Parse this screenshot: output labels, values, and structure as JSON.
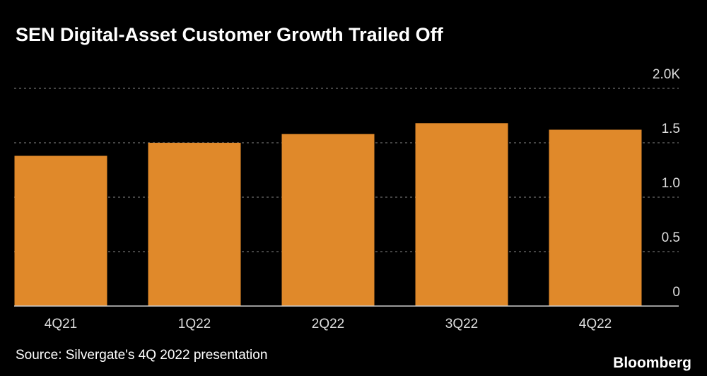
{
  "chart_data": {
    "type": "bar",
    "title": "SEN Digital-Asset Customer Growth Trailed Off",
    "categories": [
      "4Q21",
      "1Q22",
      "2Q22",
      "3Q22",
      "4Q22"
    ],
    "values": [
      1.38,
      1.5,
      1.58,
      1.68,
      1.62
    ],
    "color": "#e0892a",
    "ylim": [
      0,
      2
    ],
    "yticks": [
      0,
      0.5,
      {
        "value": 1,
        "label": "1.0"
      },
      1.5,
      {
        "value": 2,
        "label": "2.0K"
      }
    ],
    "grid": true,
    "source": "Source: Silvergate's 4Q 2022 presentation",
    "brand": "Bloomberg"
  }
}
